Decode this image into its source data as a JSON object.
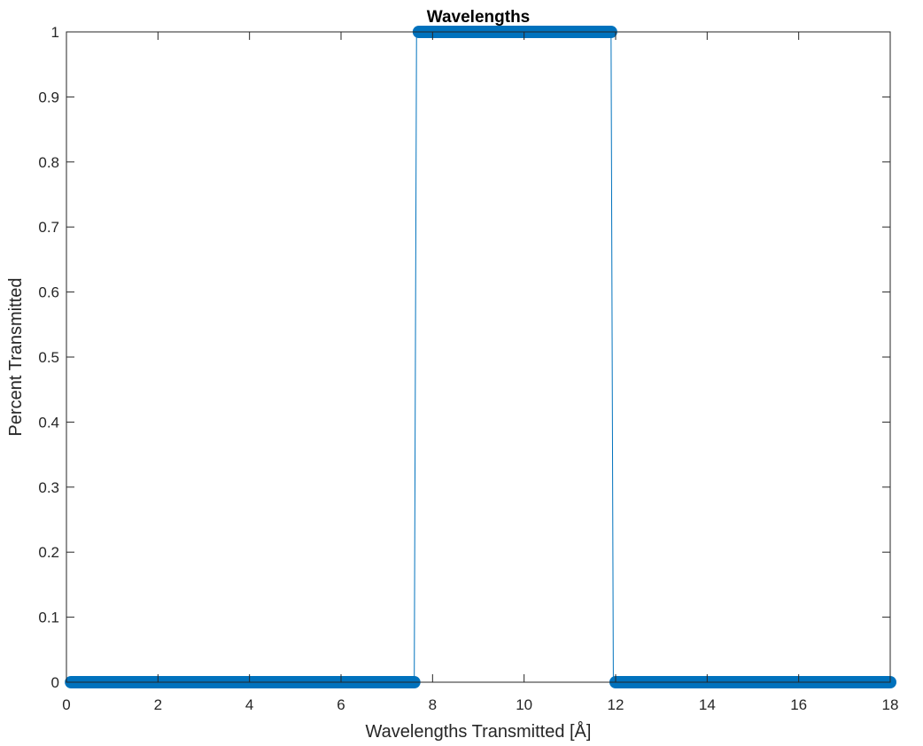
{
  "chart_data": {
    "type": "line",
    "title": "Wavelengths",
    "xlabel": "Wavelengths Transmitted [Å]",
    "ylabel": "Percent Transmitted",
    "xlim": [
      0,
      18
    ],
    "ylim": [
      0,
      1
    ],
    "xticks": [
      0,
      2,
      4,
      6,
      8,
      10,
      12,
      14,
      16,
      18
    ],
    "xtick_labels": [
      "0",
      "2",
      "4",
      "6",
      "8",
      "10",
      "12",
      "14",
      "16",
      "18"
    ],
    "yticks": [
      0,
      0.1,
      0.2,
      0.3,
      0.4,
      0.5,
      0.6,
      0.7,
      0.8,
      0.9,
      1
    ],
    "ytick_labels": [
      "0",
      "0.1",
      "0.2",
      "0.3",
      "0.4",
      "0.5",
      "0.6",
      "0.7",
      "0.8",
      "0.9",
      "1"
    ],
    "grid": false,
    "marker": "circle",
    "series_color": "#0072BD",
    "series": [
      {
        "segments": [
          {
            "x_start": 0.1,
            "x_end": 7.6,
            "y": 0
          },
          {
            "x_start": 7.7,
            "x_end": 11.9,
            "y": 1
          },
          {
            "x_start": 12.0,
            "x_end": 18.0,
            "y": 0
          }
        ],
        "line": {
          "x": [
            0.1,
            7.6,
            7.65,
            7.7,
            11.9,
            11.95,
            12.0,
            18.0
          ],
          "y": [
            0,
            0,
            1,
            1,
            1,
            0,
            0,
            0
          ]
        }
      }
    ]
  }
}
